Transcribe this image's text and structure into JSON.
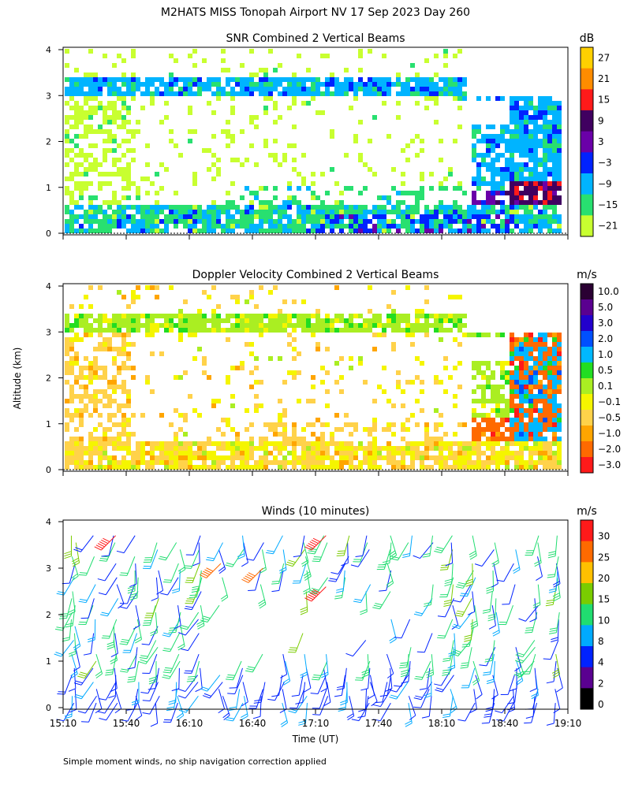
{
  "figure": {
    "title": "M2HATS  MISS Tonopah Airport NV  17 Sep 2023 Day 260",
    "footnote": "Simple moment winds, no ship navigation correction applied",
    "ylabel": "Altitude (km)",
    "xlabel": "Time (UT)"
  },
  "chart_data": [
    {
      "type": "heatmap",
      "title": "SNR Combined 2 Vertical Beams",
      "units": "dB",
      "ylim": [
        0,
        4
      ],
      "yticks": [
        "0",
        "1",
        "2",
        "3",
        "4"
      ],
      "xlim": [
        "15:10",
        "19:10"
      ],
      "colorbar": {
        "labels": [
          "27",
          "21",
          "15",
          "9",
          "3",
          "−3",
          "−9",
          "−15",
          "−21"
        ],
        "colors": [
          "#ffd000",
          "#ff8c00",
          "#ff1a1a",
          "#400060",
          "#6a00a8",
          "#0022ff",
          "#00b4ff",
          "#28e070",
          "#c8ff30"
        ]
      },
      "features": [
        {
          "desc": "boundary-layer top layer",
          "alt_km": 3.25,
          "start": "15:10",
          "end": "18:40",
          "snr_db": -9
        },
        {
          "desc": "near-surface layer",
          "alt_km_range": [
            0.1,
            0.6
          ],
          "start": "15:10",
          "end": "19:05",
          "snr_db": -12
        },
        {
          "desc": "strong late-day echoes",
          "alt_km_range": [
            0.1,
            1.2
          ],
          "start": "18:10",
          "end": "19:00",
          "snr_db": 3
        }
      ]
    },
    {
      "type": "heatmap",
      "title": "Doppler Velocity Combined 2 Vertical Beams",
      "units": "m/s",
      "ylim": [
        0,
        4
      ],
      "yticks": [
        "0",
        "1",
        "2",
        "3",
        "4"
      ],
      "xlim": [
        "15:10",
        "19:10"
      ],
      "colorbar": {
        "labels": [
          "10.0",
          "5.0",
          "3.0",
          "2.0",
          "1.0",
          "0.5",
          "0.1",
          "−0.1",
          "−0.5",
          "−1.0",
          "−2.0",
          "−3.0"
        ],
        "colors": [
          "#2a0033",
          "#5a0090",
          "#2200cc",
          "#0050ff",
          "#00b8ff",
          "#22dd22",
          "#aaee22",
          "#f5f500",
          "#ffd24a",
          "#ffa500",
          "#ff6a00",
          "#ff1a1a"
        ]
      },
      "features": [
        {
          "desc": "top layer",
          "alt_km": 3.25,
          "start": "15:10",
          "end": "18:40",
          "velocity_ms": 0.1
        },
        {
          "desc": "low-level downdrafts",
          "alt_km_range": [
            0.1,
            0.7
          ],
          "start": "15:10",
          "end": "19:00",
          "velocity_ms": -0.5
        },
        {
          "desc": "late-day updrafts",
          "alt_km_range": [
            0.3,
            2.4
          ],
          "start": "18:40",
          "end": "19:00",
          "velocity_ms": 1.0
        }
      ]
    },
    {
      "type": "barbs",
      "title": "Winds (10 minutes)",
      "units": "m/s",
      "ylim": [
        0,
        4
      ],
      "yticks": [
        "0",
        "1",
        "2",
        "3",
        "4"
      ],
      "xticks": [
        "15:10",
        "15:40",
        "16:10",
        "16:40",
        "17:10",
        "17:40",
        "18:10",
        "18:40",
        "19:10"
      ],
      "colorbar": {
        "labels": [
          "30",
          "25",
          "20",
          "15",
          "10",
          "8",
          "4",
          "2",
          "0"
        ],
        "colors": [
          "#ff1a1a",
          "#ff6a00",
          "#ffc000",
          "#7acc00",
          "#20dd70",
          "#00aaff",
          "#0022ff",
          "#5a0090",
          "#000000"
        ]
      },
      "profile_times": [
        "15:15",
        "15:25",
        "15:35",
        "15:45",
        "15:55",
        "16:05",
        "16:15",
        "16:25",
        "16:35",
        "16:45",
        "16:55",
        "17:05",
        "17:15",
        "17:25",
        "17:35",
        "17:45",
        "17:55",
        "18:05",
        "18:15",
        "18:25",
        "18:35",
        "18:45",
        "18:55",
        "19:05"
      ],
      "strong_winds": [
        {
          "time": "15:35",
          "alt_km": 3.7,
          "speed_ms": 30
        },
        {
          "time": "17:15",
          "alt_km": 3.7,
          "speed_ms": 30
        },
        {
          "time": "17:15",
          "alt_km": 2.6,
          "speed_ms": 30
        },
        {
          "time": "16:25",
          "alt_km": 3.1,
          "speed_ms": 25
        },
        {
          "time": "16:45",
          "alt_km": 3.0,
          "speed_ms": 25
        }
      ]
    }
  ]
}
